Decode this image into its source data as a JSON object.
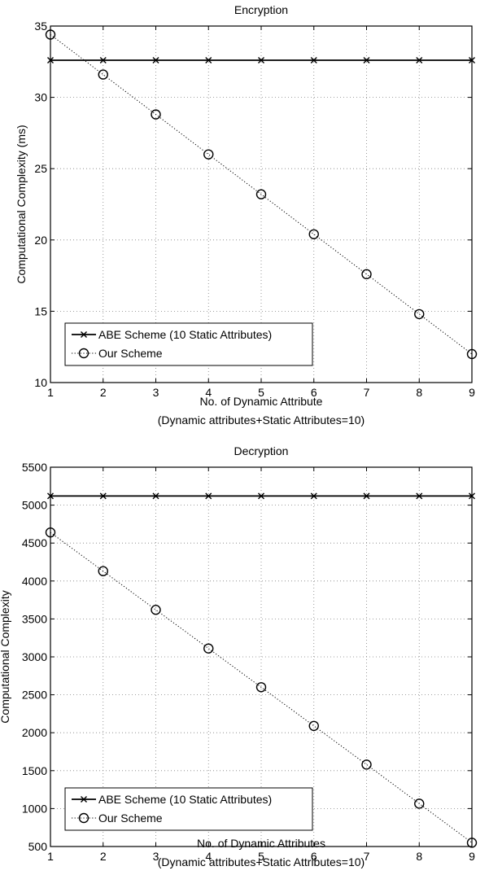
{
  "chart_data": [
    {
      "type": "line",
      "title": "Encryption",
      "xlabel": "No. of Dynamic Attribute",
      "xlabel2": "(Dynamic attributes+Static Attributes=10)",
      "ylabel": "Computational Complexity (ms)",
      "xlim": [
        1,
        9
      ],
      "ylim": [
        10,
        35
      ],
      "xticks": [
        1,
        2,
        3,
        4,
        5,
        6,
        7,
        8,
        9
      ],
      "yticks": [
        10,
        15,
        20,
        25,
        30,
        35
      ],
      "grid": true,
      "legend_position": "bottom-left",
      "x": [
        1,
        2,
        3,
        4,
        5,
        6,
        7,
        8,
        9
      ],
      "series": [
        {
          "name": "ABE Scheme (10 Static Attributes)",
          "marker": "x",
          "line": "solid",
          "values": [
            32.6,
            32.6,
            32.6,
            32.6,
            32.6,
            32.6,
            32.6,
            32.6,
            32.6
          ]
        },
        {
          "name": "Our Scheme",
          "marker": "o",
          "line": "dotted",
          "values": [
            34.4,
            31.6,
            28.8,
            26.0,
            23.2,
            20.4,
            17.6,
            14.8,
            12.0
          ]
        }
      ]
    },
    {
      "type": "line",
      "title": "Decryption",
      "xlabel": "No. of Dynamic Attributes",
      "xlabel2": "(Dynamic attributes+Static Attributes=10)",
      "ylabel": "Computational Complexity",
      "xlim": [
        1,
        9
      ],
      "ylim": [
        500,
        5500
      ],
      "xticks": [
        1,
        2,
        3,
        4,
        5,
        6,
        7,
        8,
        9
      ],
      "yticks": [
        500,
        1000,
        1500,
        2000,
        2500,
        3000,
        3500,
        4000,
        4500,
        5000,
        5500
      ],
      "grid": true,
      "legend_position": "bottom-left",
      "x": [
        1,
        2,
        3,
        4,
        5,
        6,
        7,
        8,
        9
      ],
      "series": [
        {
          "name": "ABE Scheme (10 Static Attributes)",
          "marker": "x",
          "line": "solid",
          "values": [
            5120,
            5120,
            5120,
            5120,
            5120,
            5120,
            5120,
            5120,
            5120
          ]
        },
        {
          "name": "Our Scheme",
          "marker": "o",
          "line": "dotted",
          "values": [
            4640,
            4130,
            3620,
            3110,
            2600,
            2090,
            1580,
            1065,
            550
          ]
        }
      ]
    }
  ]
}
